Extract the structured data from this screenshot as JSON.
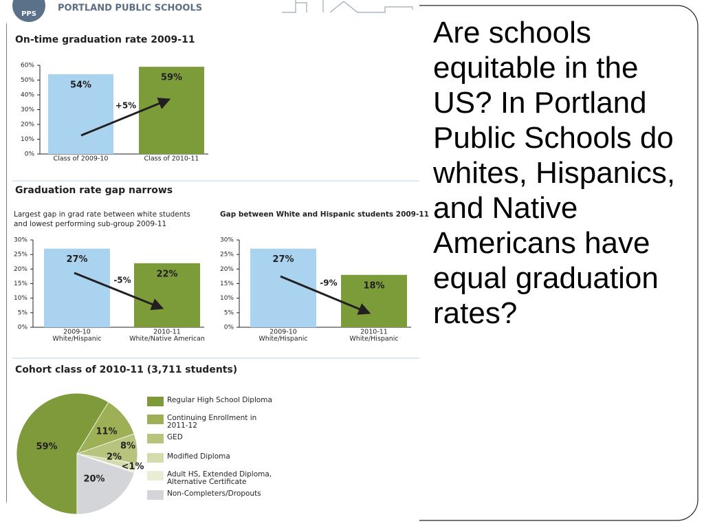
{
  "header": {
    "logo": "PPS",
    "org": "PORTLAND PUBLIC SCHOOLS"
  },
  "question": "Are schools equitable in the US?  In Portland Public Schools do whites, Hispanics, and Native Americans have equal graduation rates?",
  "chart_data": [
    {
      "type": "bar",
      "title": "On-time graduation rate 2009-11",
      "categories": [
        "Class of 2009-10",
        "Class of 2010-11"
      ],
      "values": [
        54,
        59
      ],
      "value_labels": [
        "54%",
        "59%"
      ],
      "colors": [
        "#a9d3ef",
        "#7c9c3a"
      ],
      "annotation": "+5%",
      "ylim": [
        0,
        60
      ],
      "yticks": [
        {
          "value": 0,
          "label": "0%"
        },
        {
          "value": 10,
          "label": "10%"
        },
        {
          "value": 20,
          "label": "20%"
        },
        {
          "value": 30,
          "label": "30%"
        },
        {
          "value": 40,
          "label": "40%"
        },
        {
          "value": 50,
          "label": "50%"
        },
        {
          "value": 60,
          "label": "60%"
        }
      ]
    },
    {
      "type": "bar",
      "section_title": "Graduation rate gap narrows",
      "title": "Largest gap in grad rate between white students and lowest performing sub-group 2009-11",
      "categories": [
        [
          "2009-10",
          "White/Hispanic"
        ],
        [
          "2010-11",
          "White/Native American"
        ]
      ],
      "values": [
        27,
        22
      ],
      "value_labels": [
        "27%",
        "22%"
      ],
      "colors": [
        "#a9d3ef",
        "#7c9c3a"
      ],
      "annotation": "-5%",
      "ylim": [
        0,
        30
      ],
      "yticks": [
        {
          "value": 0,
          "label": "0%"
        },
        {
          "value": 5,
          "label": "5%"
        },
        {
          "value": 10,
          "label": "10%"
        },
        {
          "value": 15,
          "label": "15%"
        },
        {
          "value": 20,
          "label": "20%"
        },
        {
          "value": 25,
          "label": "25%"
        },
        {
          "value": 30,
          "label": "30%"
        }
      ]
    },
    {
      "type": "bar",
      "title": "Gap between White and Hispanic students 2009-11",
      "categories": [
        [
          "2009-10",
          "White/Hispanic"
        ],
        [
          "2010-11",
          "White/Hispanic"
        ]
      ],
      "values": [
        27,
        18
      ],
      "value_labels": [
        "27%",
        "18%"
      ],
      "colors": [
        "#a9d3ef",
        "#7c9c3a"
      ],
      "annotation": "-9%",
      "ylim": [
        0,
        30
      ],
      "yticks": [
        {
          "value": 0,
          "label": "0%"
        },
        {
          "value": 5,
          "label": "5%"
        },
        {
          "value": 10,
          "label": "10%"
        },
        {
          "value": 15,
          "label": "15%"
        },
        {
          "value": 20,
          "label": "20%"
        },
        {
          "value": 25,
          "label": "25%"
        },
        {
          "value": 30,
          "label": "30%"
        }
      ]
    },
    {
      "type": "pie",
      "title": "Cohort class of 2010-11 (3,711 students)",
      "categories": [
        "Regular High School Diploma",
        "Continuing Enrollment in 2011-12",
        "GED",
        "Modified Diploma",
        "Adult HS, Extended Diploma, Alternative Certificate",
        "Non-Completers/Dropouts"
      ],
      "values": [
        59,
        11,
        8,
        2,
        0.5,
        20
      ],
      "value_labels": [
        "59%",
        "11%",
        "8%",
        "2%",
        "<1%",
        "20%"
      ],
      "colors": [
        "#7f9a3a",
        "#9db056",
        "#b7c47d",
        "#d4dcae",
        "#e9edd6",
        "#d3d5d8"
      ]
    }
  ]
}
